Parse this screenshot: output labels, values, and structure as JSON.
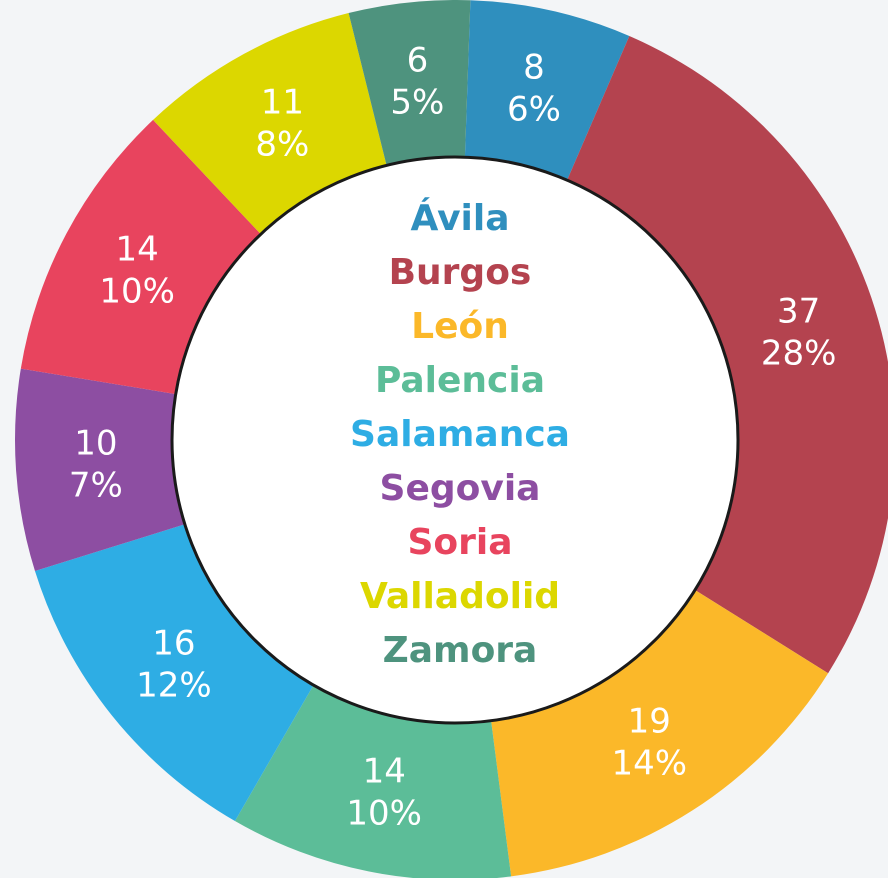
{
  "chart_data": {
    "type": "donut",
    "categories": [
      "Ávila",
      "Burgos",
      "León",
      "Palencia",
      "Salamanca",
      "Segovia",
      "Soria",
      "Valladolid",
      "Zamora"
    ],
    "values": [
      8,
      37,
      19,
      14,
      16,
      10,
      14,
      11,
      6
    ],
    "percentages": [
      {
        "value": 6,
        "label": "6%"
      },
      {
        "value": 28,
        "label": "28%"
      },
      {
        "value": 14,
        "label": "14%"
      },
      {
        "value": 10,
        "label": "10%"
      },
      {
        "value": 12,
        "label": "12%"
      },
      {
        "value": 7,
        "label": "7%"
      },
      {
        "value": 10,
        "label": "10%"
      },
      {
        "value": 8,
        "label": "8%"
      },
      {
        "value": 5,
        "label": "5%"
      }
    ],
    "colors": [
      "#2f8fbe",
      "#b4434f",
      "#fbb829",
      "#5cbd98",
      "#2eade4",
      "#8d4ea2",
      "#e8445e",
      "#dcd700",
      "#4e937e"
    ]
  }
}
